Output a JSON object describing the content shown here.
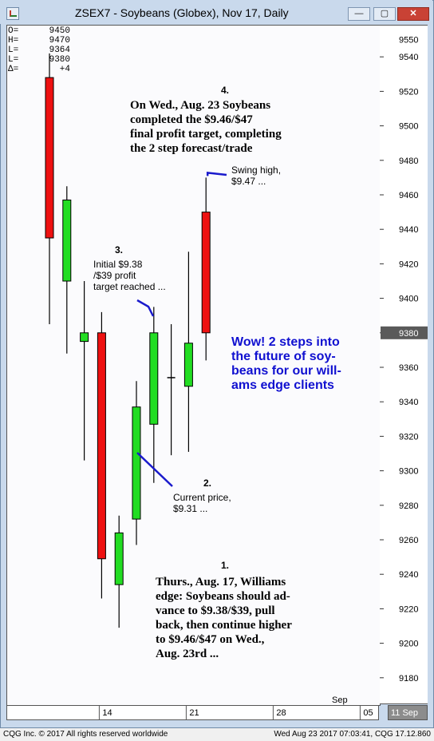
{
  "window": {
    "title": "ZSEX7 - Soybeans (Globex), Nov 17, Daily",
    "min_label": "—",
    "max_label": "▢",
    "close_label": "✕"
  },
  "ohlc": [
    {
      "label": "O=",
      "value": "9450"
    },
    {
      "label": "H=",
      "value": "9470"
    },
    {
      "label": "L=",
      "value": "9364"
    },
    {
      "label": "L=",
      "value": "9380"
    },
    {
      "label": "Δ=",
      "value": "+4"
    }
  ],
  "annotations": {
    "n4": "4.",
    "a4": [
      "On  Wed., Aug. 23 Soybeans",
      "completed the $9.46/$47",
      "final profit target, completing",
      "the 2 step forecast/trade"
    ],
    "swing": [
      "Swing high,",
      "$9.47 ..."
    ],
    "n3": "3.",
    "a3": [
      "Initial $9.38",
      "/$39 profit",
      "target reached ..."
    ],
    "blue": [
      "Wow! 2 steps into",
      "the future of soy-",
      "beans for our will-",
      "ams edge clients"
    ],
    "n2": "2.",
    "a2": [
      "Current price,",
      "$9.31 ..."
    ],
    "n1": "1.",
    "a1": [
      "Thurs., Aug.  17, Williams",
      "edge: Soybeans should ad-",
      "vance to $9.38/$39, pull",
      "back, then continue higher",
      "to $9.46/$47 on Wed.,",
      "Aug. 23rd ..."
    ]
  },
  "status": {
    "left": "CQG Inc. © 2017 All rights reserved worldwide",
    "right": "Wed Aug 23 2017 07:03:41, CQG 17.12.860"
  },
  "colors": {
    "up": "#22dd22",
    "down": "#ee1111",
    "last_price_box": "#5a5a5a",
    "arrow": "#1a1acc"
  },
  "chart_data": {
    "type": "candlestick",
    "y_ticks": [
      9180,
      9200,
      9220,
      9240,
      9260,
      9280,
      9300,
      9320,
      9340,
      9360,
      9380,
      9400,
      9420,
      9440,
      9460,
      9480,
      9500,
      9520,
      9540
    ],
    "ylim": [
      9166,
      9556
    ],
    "top_partial_tick": "9550",
    "last_price": "9380",
    "x_ticks": [
      {
        "label": "14",
        "index": 3
      },
      {
        "label": "21",
        "index": 8
      },
      {
        "label": "28",
        "index": 13
      },
      {
        "label": "05",
        "index": 18
      }
    ],
    "month_label": "Sep",
    "right_axis_label": "11  Sep",
    "candles": [
      {
        "open": 9528,
        "high": 9542,
        "low": 9385,
        "close": 9435
      },
      {
        "open": 9410,
        "high": 9465,
        "low": 9368,
        "close": 9457
      },
      {
        "open": 9375,
        "high": 9410,
        "low": 9306,
        "close": 9380
      },
      {
        "open": 9380,
        "high": 9392,
        "low": 9226,
        "close": 9249
      },
      {
        "open": 9234,
        "high": 9274,
        "low": 9209,
        "close": 9264
      },
      {
        "open": 9272,
        "high": 9352,
        "low": 9257,
        "close": 9337
      },
      {
        "open": 9327,
        "high": 9395,
        "low": 9293,
        "close": 9380
      },
      {
        "open": 9354,
        "high": 9385,
        "low": 9309,
        "close": 9354
      },
      {
        "open": 9349,
        "high": 9427,
        "low": 9311,
        "close": 9374
      },
      {
        "open": 9450,
        "high": 9470,
        "low": 9364,
        "close": 9380
      }
    ]
  }
}
